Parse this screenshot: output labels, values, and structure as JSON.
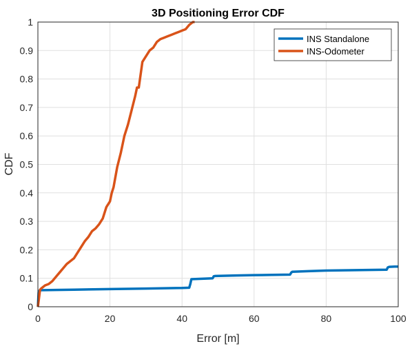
{
  "chart_data": {
    "type": "line",
    "title": "3D Positioning Error CDF",
    "xlabel": "Error [m]",
    "ylabel": "CDF",
    "xlim": [
      0,
      100
    ],
    "ylim": [
      0,
      1
    ],
    "xticks": [
      "0",
      "20",
      "40",
      "60",
      "80",
      "100"
    ],
    "yticks": [
      "0",
      "0.1",
      "0.2",
      "0.3",
      "0.4",
      "0.5",
      "0.6",
      "0.7",
      "0.8",
      "0.9",
      "1"
    ],
    "grid": true,
    "legend_position": "top-right",
    "series": [
      {
        "name": "INS Standalone",
        "color": "#0072BD",
        "x": [
          0,
          0.2,
          0.5,
          5,
          10,
          20,
          30,
          40,
          42,
          42.3,
          42.6,
          48.5,
          48.8,
          49.2,
          55,
          60,
          65,
          70,
          70.3,
          70.6,
          75,
          80,
          85,
          90,
          96.8,
          97.1,
          97.5,
          99,
          100
        ],
        "y": [
          0,
          0.05,
          0.058,
          0.059,
          0.06,
          0.062,
          0.064,
          0.066,
          0.067,
          0.08,
          0.097,
          0.1,
          0.107,
          0.108,
          0.11,
          0.111,
          0.112,
          0.113,
          0.12,
          0.123,
          0.125,
          0.127,
          0.128,
          0.129,
          0.13,
          0.138,
          0.14,
          0.141,
          0.141
        ]
      },
      {
        "name": "INS-Odometer",
        "color": "#D95319",
        "x": [
          0,
          0.2,
          0.4,
          0.6,
          1,
          2,
          3,
          4,
          5,
          6,
          7,
          8,
          9,
          10,
          11,
          12,
          13,
          14,
          15,
          16,
          17,
          18,
          19,
          20,
          20.5,
          21,
          22,
          23,
          24,
          25,
          26,
          27,
          27.5,
          28,
          29,
          30,
          31,
          32,
          33,
          34,
          35,
          36,
          37,
          38,
          39,
          40,
          41,
          42,
          43,
          43.5
        ],
        "y": [
          0,
          0.02,
          0.04,
          0.06,
          0.065,
          0.075,
          0.08,
          0.09,
          0.105,
          0.12,
          0.135,
          0.15,
          0.16,
          0.17,
          0.19,
          0.21,
          0.23,
          0.245,
          0.265,
          0.275,
          0.29,
          0.31,
          0.35,
          0.37,
          0.4,
          0.42,
          0.49,
          0.54,
          0.6,
          0.64,
          0.69,
          0.74,
          0.77,
          0.77,
          0.86,
          0.88,
          0.9,
          0.91,
          0.93,
          0.94,
          0.945,
          0.95,
          0.955,
          0.96,
          0.965,
          0.97,
          0.975,
          0.99,
          1,
          1
        ]
      }
    ]
  }
}
